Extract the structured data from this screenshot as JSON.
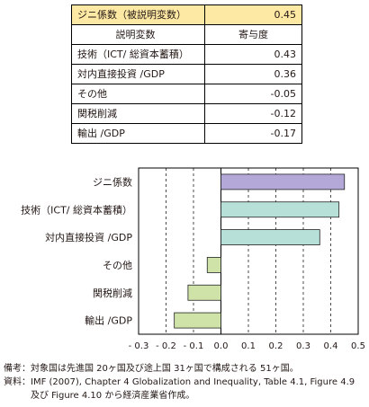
{
  "table": {
    "dependent": {
      "label": "ジニ係数（被説明変数）",
      "value": "0.45"
    },
    "header": {
      "variable": "説明変数",
      "contribution": "寄与度"
    },
    "rows": [
      {
        "label": "技術（ICT/ 総資本蓄積）",
        "value": "0.43"
      },
      {
        "label": "対内直接投資 /GDP",
        "value": "0.36"
      },
      {
        "label": "その他",
        "value": "-0.05"
      },
      {
        "label": "関税削減",
        "value": "-0.12"
      },
      {
        "label": "輸出 /GDP",
        "value": "-0.17"
      }
    ]
  },
  "chart_data": {
    "type": "bar",
    "orientation": "horizontal",
    "categories": [
      "ジニ係数",
      "技術（ICT/ 総資本蓄積）",
      "対内直接投資 /GDP",
      "その他",
      "関税削減",
      "輸出 /GDP"
    ],
    "values": [
      0.45,
      0.43,
      0.36,
      -0.05,
      -0.12,
      -0.17
    ],
    "bar_colors": [
      "#b3a8d8",
      "#b7e0d8",
      "#b7e0d8",
      "#cfe3a8",
      "#cfe3a8",
      "#cfe3a8"
    ],
    "xlim": [
      -0.3,
      0.5
    ],
    "xticks": [
      -0.3,
      -0.2,
      -0.1,
      0,
      0.1,
      0.2,
      0.3,
      0.4,
      0.5
    ],
    "xtick_labels": [
      "- 0.3",
      "- 0.2",
      "- 0.1",
      "0.0",
      "0.1",
      "0.2",
      "0.3",
      "0.4",
      "0.5"
    ],
    "grid": "vertical dashed"
  },
  "notes": [
    {
      "prefix": "備考：",
      "text": "対象国は先進国 20ヶ国及び途上国 31ヶ国で構成される 51ヶ国。"
    },
    {
      "prefix": "資料：",
      "text": "IMF (2007), Chapter 4 Globalization and Inequality, Table 4.1, Figure 4.9 及び Figure 4.10 から経済産業省作成。"
    }
  ]
}
